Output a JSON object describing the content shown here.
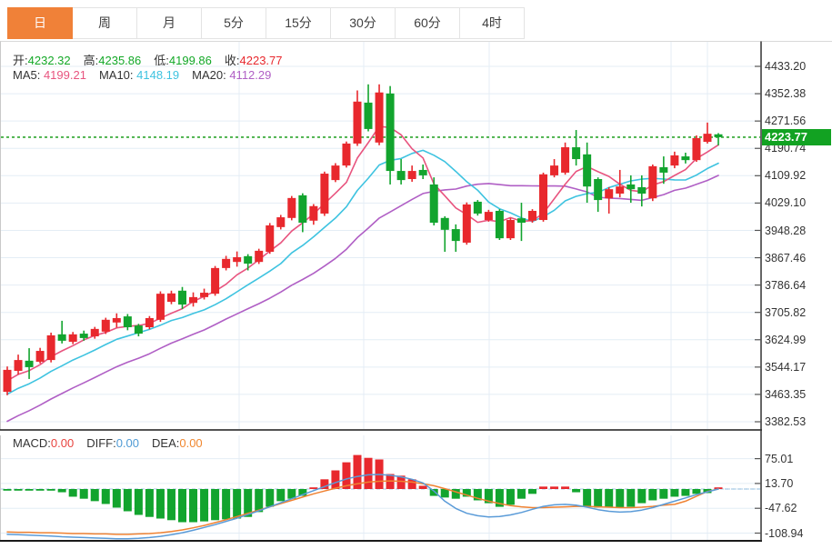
{
  "toolbar": {
    "tabs": [
      {
        "id": "day",
        "label": "日",
        "active": true
      },
      {
        "id": "week",
        "label": "周",
        "active": false
      },
      {
        "id": "month",
        "label": "月",
        "active": false
      },
      {
        "id": "5min",
        "label": "5分",
        "active": false
      },
      {
        "id": "15min",
        "label": "15分",
        "active": false
      },
      {
        "id": "30min",
        "label": "30分",
        "active": false
      },
      {
        "id": "60min",
        "label": "60分",
        "active": false
      },
      {
        "id": "4hour",
        "label": "4时",
        "active": false
      }
    ]
  },
  "info_bar": {
    "items": [
      {
        "label": "开:",
        "value": "4232.32",
        "color": "#13a826"
      },
      {
        "label": "高:",
        "value": "4235.86",
        "color": "#13a826"
      },
      {
        "label": "低:",
        "value": "4199.86",
        "color": "#13a826"
      },
      {
        "label": "收:",
        "value": "4223.77",
        "color": "#e8282d"
      }
    ]
  },
  "ma_bar": {
    "items": [
      {
        "label": "MA5:",
        "value": " 4199.21",
        "color": "#e8547f"
      },
      {
        "label": "MA10:",
        "value": " 4148.19",
        "color": "#3ec3e0"
      },
      {
        "label": "MA20:",
        "value": " 4112.29",
        "color": "#b05fc5"
      }
    ]
  },
  "macd_bar": {
    "items": [
      {
        "label": "MACD:",
        "value": "0.00",
        "color": "#e8443f"
      },
      {
        "label": "DIFF:",
        "value": "0.00",
        "color": "#4f9bd5"
      },
      {
        "label": "DEA:",
        "value": "0.00",
        "color": "#f0872f"
      }
    ]
  },
  "price_axis": {
    "labels": [
      "4433.20",
      "4352.38",
      "4271.56",
      "4190.74",
      "4109.92",
      "4029.10",
      "3948.28",
      "3867.46",
      "3786.64",
      "3705.82",
      "3624.99",
      "3544.17",
      "3463.35",
      "3382.53"
    ],
    "tag": "4223.77"
  },
  "macd_axis": {
    "labels": [
      "75.01",
      "13.70",
      "-47.62",
      "-108.94"
    ]
  },
  "colors": {
    "up": "#e8282d",
    "down": "#12a42e",
    "grid": "#e4edf5",
    "axis": "#333333",
    "border_light": "#d9d9d9",
    "dotted": "#2da52d",
    "tag_bg": "#12a222",
    "tag_text": "#ffffff",
    "ma5": "#e8547f",
    "ma10": "#3ec3e0",
    "ma20": "#b05fc5",
    "diff": "#5a9bd8",
    "dea": "#f08232",
    "zero_dash": "#b8d4ea",
    "tab_active_bg": "#f08138"
  },
  "chart_data": {
    "type": "candlestick",
    "title": "",
    "price_axis": {
      "top": 4433.2,
      "step": 80.82,
      "bottom": 3382.53,
      "ticks": 14
    },
    "macd_value_axis": {
      "top": 75.01,
      "step": 61.31,
      "bottom": -108.94,
      "ticks": 4
    },
    "dotted_level": 4223.77,
    "last_candle": {
      "open": 4232.32,
      "high": 4235.86,
      "low": 4199.86,
      "close": 4223.77
    },
    "ma_periods": [
      5,
      10,
      20
    ],
    "ma_values_last": {
      "ma5": 4199.21,
      "ma10": 4148.19,
      "ma20": 4112.29
    },
    "macd_values_last": {
      "macd": 0.0,
      "diff": 0.0,
      "dea": 0.0
    },
    "candles": [
      [
        3471,
        3546,
        3461,
        3536
      ],
      [
        3533,
        3581,
        3522,
        3565
      ],
      [
        3563,
        3600,
        3509,
        3544
      ],
      [
        3560,
        3601,
        3555,
        3592
      ],
      [
        3565,
        3646,
        3558,
        3638
      ],
      [
        3641,
        3681,
        3614,
        3622
      ],
      [
        3619,
        3648,
        3612,
        3641
      ],
      [
        3643,
        3652,
        3622,
        3630
      ],
      [
        3635,
        3663,
        3628,
        3657
      ],
      [
        3649,
        3690,
        3642,
        3684
      ],
      [
        3676,
        3703,
        3661,
        3689
      ],
      [
        3694,
        3701,
        3653,
        3662
      ],
      [
        3667,
        3672,
        3635,
        3643
      ],
      [
        3662,
        3695,
        3656,
        3689
      ],
      [
        3684,
        3768,
        3678,
        3761
      ],
      [
        3737,
        3770,
        3730,
        3762
      ],
      [
        3770,
        3781,
        3716,
        3729
      ],
      [
        3734,
        3765,
        3723,
        3751
      ],
      [
        3751,
        3776,
        3744,
        3764
      ],
      [
        3761,
        3843,
        3755,
        3837
      ],
      [
        3837,
        3873,
        3830,
        3864
      ],
      [
        3855,
        3886,
        3841,
        3869
      ],
      [
        3872,
        3878,
        3830,
        3850
      ],
      [
        3855,
        3894,
        3849,
        3888
      ],
      [
        3885,
        3970,
        3879,
        3963
      ],
      [
        3958,
        3994,
        3951,
        3987
      ],
      [
        3985,
        4050,
        3978,
        4044
      ],
      [
        4052,
        4058,
        3943,
        3971
      ],
      [
        3977,
        4026,
        3965,
        4020
      ],
      [
        3998,
        4122,
        3991,
        4116
      ],
      [
        4097,
        4147,
        4091,
        4140
      ],
      [
        4140,
        4211,
        4134,
        4205
      ],
      [
        4205,
        4362,
        4198,
        4329
      ],
      [
        4326,
        4380,
        4241,
        4248
      ],
      [
        4208,
        4380,
        4200,
        4356
      ],
      [
        4353,
        4375,
        4084,
        4124
      ],
      [
        4124,
        4159,
        4084,
        4097
      ],
      [
        4100,
        4140,
        4092,
        4124
      ],
      [
        4127,
        4143,
        4100,
        4111
      ],
      [
        4084,
        4105,
        3963,
        3971
      ],
      [
        3985,
        3990,
        3885,
        3950
      ],
      [
        3952,
        3966,
        3885,
        3917
      ],
      [
        3912,
        4031,
        3906,
        4025
      ],
      [
        4033,
        4038,
        3992,
        3998
      ],
      [
        3979,
        4009,
        3974,
        4003
      ],
      [
        4006,
        4011,
        3920,
        3925
      ],
      [
        3925,
        3985,
        3920,
        3979
      ],
      [
        3984,
        4030,
        3917,
        3971
      ],
      [
        3977,
        4011,
        3971,
        4006
      ],
      [
        3979,
        4119,
        3974,
        4114
      ],
      [
        4111,
        4159,
        4105,
        4140
      ],
      [
        4119,
        4208,
        4113,
        4194
      ],
      [
        4194,
        4245,
        4140,
        4159
      ],
      [
        4173,
        4208,
        4030,
        4078
      ],
      [
        4100,
        4105,
        4003,
        4038
      ],
      [
        4043,
        4076,
        3998,
        4070
      ],
      [
        4057,
        4127,
        4046,
        4078
      ],
      [
        4084,
        4111,
        4030,
        4070
      ],
      [
        4076,
        4111,
        4019,
        4057
      ],
      [
        4043,
        4143,
        4035,
        4138
      ],
      [
        4135,
        4167,
        4086,
        4119
      ],
      [
        4140,
        4181,
        4132,
        4170
      ],
      [
        4167,
        4178,
        4146,
        4156
      ],
      [
        4156,
        4229,
        4151,
        4221
      ],
      [
        4210,
        4267,
        4205,
        4234
      ],
      [
        4232.32,
        4235.86,
        4199.86,
        4223.77
      ]
    ],
    "macd": {
      "hist": [
        -1,
        -1,
        -2,
        -2,
        -3,
        -8,
        -19,
        -24,
        -30,
        -37,
        -46,
        -55,
        -64,
        -69,
        -73,
        -77,
        -82,
        -82,
        -80,
        -77,
        -75,
        -73,
        -69,
        -57,
        -44,
        -30,
        -24,
        -17,
        2,
        24,
        46,
        66,
        84,
        77,
        73,
        37,
        33,
        24,
        8,
        -17,
        -21,
        -24,
        -19,
        -28,
        -35,
        -44,
        -39,
        -24,
        -12,
        6,
        6,
        6,
        -8,
        -44,
        -46,
        -46,
        -46,
        -44,
        -35,
        -28,
        -24,
        -19,
        -17,
        -12,
        -10,
        0
      ],
      "diff": [
        -112,
        -113,
        -114,
        -115,
        -116,
        -118,
        -119,
        -120,
        -121,
        -122,
        -123,
        -123,
        -122,
        -120,
        -117,
        -113,
        -108,
        -102,
        -95,
        -88,
        -80,
        -72,
        -63,
        -54,
        -44,
        -34,
        -24,
        -14,
        -4,
        6,
        16,
        25,
        31,
        35,
        36,
        34,
        30,
        24,
        15,
        -5,
        -30,
        -48,
        -60,
        -66,
        -69,
        -68,
        -64,
        -58,
        -50,
        -43,
        -39,
        -38,
        -40,
        -45,
        -51,
        -55,
        -57,
        -56,
        -52,
        -46,
        -38,
        -30,
        -22,
        -14,
        -7,
        0
      ],
      "dea": [
        -106,
        -107,
        -107,
        -108,
        -108,
        -109,
        -110,
        -110,
        -111,
        -111,
        -112,
        -112,
        -111,
        -110,
        -108,
        -105,
        -101,
        -96,
        -90,
        -83,
        -76,
        -68,
        -60,
        -52,
        -44,
        -36,
        -28,
        -20,
        -12,
        -5,
        2,
        8,
        13,
        17,
        19,
        20,
        19,
        17,
        13,
        8,
        1,
        -7,
        -15,
        -23,
        -30,
        -36,
        -41,
        -44,
        -46,
        -46,
        -45,
        -44,
        -43,
        -43,
        -44,
        -45,
        -46,
        -46,
        -45,
        -43,
        -40,
        -38,
        -30,
        -18,
        -6,
        0
      ]
    }
  }
}
